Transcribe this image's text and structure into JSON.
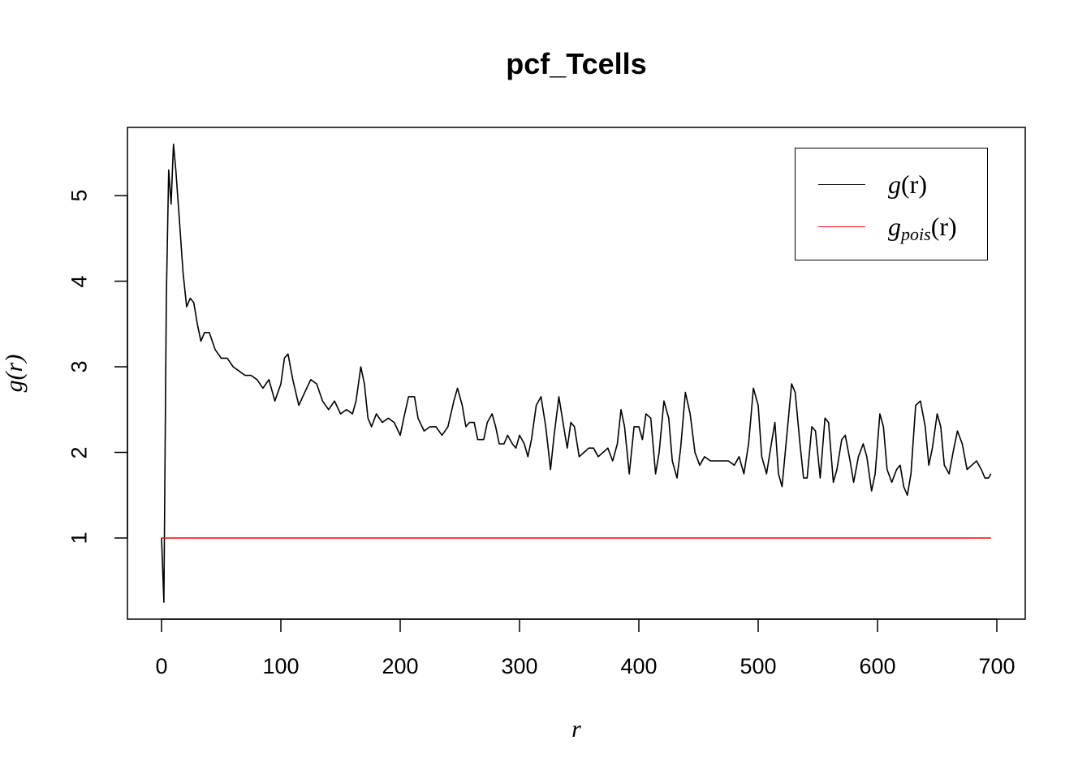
{
  "chart_data": {
    "type": "line",
    "title": "pcf_Tcells",
    "xlabel": "r",
    "ylabel": "g(r)",
    "xlim": [
      0,
      700
    ],
    "ylim": [
      0.25,
      5.6
    ],
    "x_ticks": [
      "0",
      "100",
      "200",
      "300",
      "400",
      "500",
      "600",
      "700"
    ],
    "y_ticks": [
      "1",
      "2",
      "3",
      "4",
      "5"
    ],
    "grid": false,
    "legend_position": "top-right",
    "series": [
      {
        "name": "g(r)",
        "color": "#000000",
        "points": [
          [
            0,
            1.0
          ],
          [
            2,
            0.25
          ],
          [
            4,
            3.8
          ],
          [
            6,
            5.3
          ],
          [
            8,
            4.9
          ],
          [
            10,
            5.6
          ],
          [
            12,
            5.3
          ],
          [
            15,
            4.7
          ],
          [
            18,
            4.1
          ],
          [
            21,
            3.7
          ],
          [
            24,
            3.8
          ],
          [
            27,
            3.75
          ],
          [
            30,
            3.5
          ],
          [
            33,
            3.3
          ],
          [
            36,
            3.4
          ],
          [
            40,
            3.4
          ],
          [
            45,
            3.2
          ],
          [
            50,
            3.1
          ],
          [
            55,
            3.1
          ],
          [
            60,
            3.0
          ],
          [
            65,
            2.95
          ],
          [
            70,
            2.9
          ],
          [
            75,
            2.9
          ],
          [
            80,
            2.85
          ],
          [
            85,
            2.75
          ],
          [
            90,
            2.85
          ],
          [
            95,
            2.6
          ],
          [
            100,
            2.8
          ],
          [
            103,
            3.1
          ],
          [
            106,
            3.15
          ],
          [
            110,
            2.85
          ],
          [
            115,
            2.55
          ],
          [
            120,
            2.7
          ],
          [
            125,
            2.85
          ],
          [
            130,
            2.8
          ],
          [
            135,
            2.6
          ],
          [
            140,
            2.5
          ],
          [
            145,
            2.6
          ],
          [
            150,
            2.45
          ],
          [
            155,
            2.5
          ],
          [
            160,
            2.45
          ],
          [
            163,
            2.6
          ],
          [
            167,
            3.0
          ],
          [
            170,
            2.8
          ],
          [
            173,
            2.4
          ],
          [
            176,
            2.3
          ],
          [
            180,
            2.45
          ],
          [
            185,
            2.35
          ],
          [
            190,
            2.4
          ],
          [
            195,
            2.35
          ],
          [
            200,
            2.2
          ],
          [
            203,
            2.4
          ],
          [
            207,
            2.65
          ],
          [
            212,
            2.65
          ],
          [
            215,
            2.4
          ],
          [
            220,
            2.25
          ],
          [
            225,
            2.3
          ],
          [
            230,
            2.3
          ],
          [
            235,
            2.2
          ],
          [
            240,
            2.3
          ],
          [
            245,
            2.6
          ],
          [
            248,
            2.75
          ],
          [
            252,
            2.55
          ],
          [
            255,
            2.3
          ],
          [
            258,
            2.35
          ],
          [
            262,
            2.35
          ],
          [
            265,
            2.15
          ],
          [
            270,
            2.15
          ],
          [
            273,
            2.35
          ],
          [
            277,
            2.45
          ],
          [
            280,
            2.3
          ],
          [
            283,
            2.1
          ],
          [
            287,
            2.1
          ],
          [
            290,
            2.2
          ],
          [
            294,
            2.1
          ],
          [
            297,
            2.05
          ],
          [
            300,
            2.2
          ],
          [
            304,
            2.1
          ],
          [
            307,
            1.95
          ],
          [
            310,
            2.15
          ],
          [
            314,
            2.55
          ],
          [
            318,
            2.65
          ],
          [
            322,
            2.3
          ],
          [
            326,
            1.8
          ],
          [
            329,
            2.2
          ],
          [
            333,
            2.65
          ],
          [
            337,
            2.3
          ],
          [
            340,
            2.05
          ],
          [
            343,
            2.35
          ],
          [
            346,
            2.3
          ],
          [
            350,
            1.95
          ],
          [
            354,
            2.0
          ],
          [
            358,
            2.05
          ],
          [
            362,
            2.05
          ],
          [
            366,
            1.95
          ],
          [
            370,
            2.0
          ],
          [
            374,
            2.05
          ],
          [
            378,
            1.9
          ],
          [
            382,
            2.1
          ],
          [
            385,
            2.5
          ],
          [
            388,
            2.3
          ],
          [
            392,
            1.75
          ],
          [
            396,
            2.3
          ],
          [
            400,
            2.3
          ],
          [
            403,
            2.15
          ],
          [
            406,
            2.45
          ],
          [
            410,
            2.4
          ],
          [
            414,
            1.75
          ],
          [
            417,
            2.0
          ],
          [
            421,
            2.6
          ],
          [
            425,
            2.4
          ],
          [
            428,
            1.9
          ],
          [
            432,
            1.7
          ],
          [
            435,
            2.05
          ],
          [
            439,
            2.7
          ],
          [
            443,
            2.45
          ],
          [
            447,
            2.0
          ],
          [
            451,
            1.85
          ],
          [
            455,
            1.95
          ],
          [
            460,
            1.9
          ],
          [
            465,
            1.9
          ],
          [
            470,
            1.9
          ],
          [
            475,
            1.9
          ],
          [
            480,
            1.85
          ],
          [
            484,
            1.95
          ],
          [
            488,
            1.75
          ],
          [
            492,
            2.1
          ],
          [
            496,
            2.75
          ],
          [
            500,
            2.55
          ],
          [
            503,
            1.95
          ],
          [
            507,
            1.75
          ],
          [
            511,
            2.1
          ],
          [
            514,
            2.35
          ],
          [
            517,
            1.75
          ],
          [
            520,
            1.6
          ],
          [
            524,
            2.2
          ],
          [
            528,
            2.8
          ],
          [
            531,
            2.7
          ],
          [
            535,
            2.1
          ],
          [
            538,
            1.7
          ],
          [
            541,
            1.7
          ],
          [
            545,
            2.3
          ],
          [
            548,
            2.25
          ],
          [
            552,
            1.7
          ],
          [
            556,
            2.4
          ],
          [
            559,
            2.35
          ],
          [
            563,
            1.65
          ],
          [
            566,
            1.8
          ],
          [
            570,
            2.15
          ],
          [
            573,
            2.2
          ],
          [
            577,
            1.9
          ],
          [
            580,
            1.65
          ],
          [
            584,
            1.95
          ],
          [
            588,
            2.1
          ],
          [
            591,
            1.95
          ],
          [
            595,
            1.55
          ],
          [
            598,
            1.75
          ],
          [
            602,
            2.45
          ],
          [
            605,
            2.3
          ],
          [
            608,
            1.8
          ],
          [
            612,
            1.65
          ],
          [
            616,
            1.8
          ],
          [
            619,
            1.85
          ],
          [
            622,
            1.6
          ],
          [
            625,
            1.5
          ],
          [
            628,
            1.75
          ],
          [
            632,
            2.55
          ],
          [
            636,
            2.6
          ],
          [
            640,
            2.3
          ],
          [
            643,
            1.85
          ],
          [
            646,
            2.05
          ],
          [
            650,
            2.45
          ],
          [
            653,
            2.3
          ],
          [
            656,
            1.85
          ],
          [
            660,
            1.75
          ],
          [
            664,
            2.05
          ],
          [
            667,
            2.25
          ],
          [
            671,
            2.1
          ],
          [
            675,
            1.8
          ],
          [
            679,
            1.85
          ],
          [
            683,
            1.9
          ],
          [
            687,
            1.8
          ],
          [
            690,
            1.7
          ],
          [
            693,
            1.7
          ],
          [
            695,
            1.75
          ]
        ]
      },
      {
        "name": "g_pois(r)",
        "color": "#ff0000",
        "points": [
          [
            0,
            1.0
          ],
          [
            695,
            1.0
          ]
        ]
      }
    ]
  },
  "legend": {
    "g_label": "g",
    "g_arg": "(r)",
    "gpois_label": "g",
    "gpois_sub": "pois",
    "gpois_arg": "(r)"
  }
}
